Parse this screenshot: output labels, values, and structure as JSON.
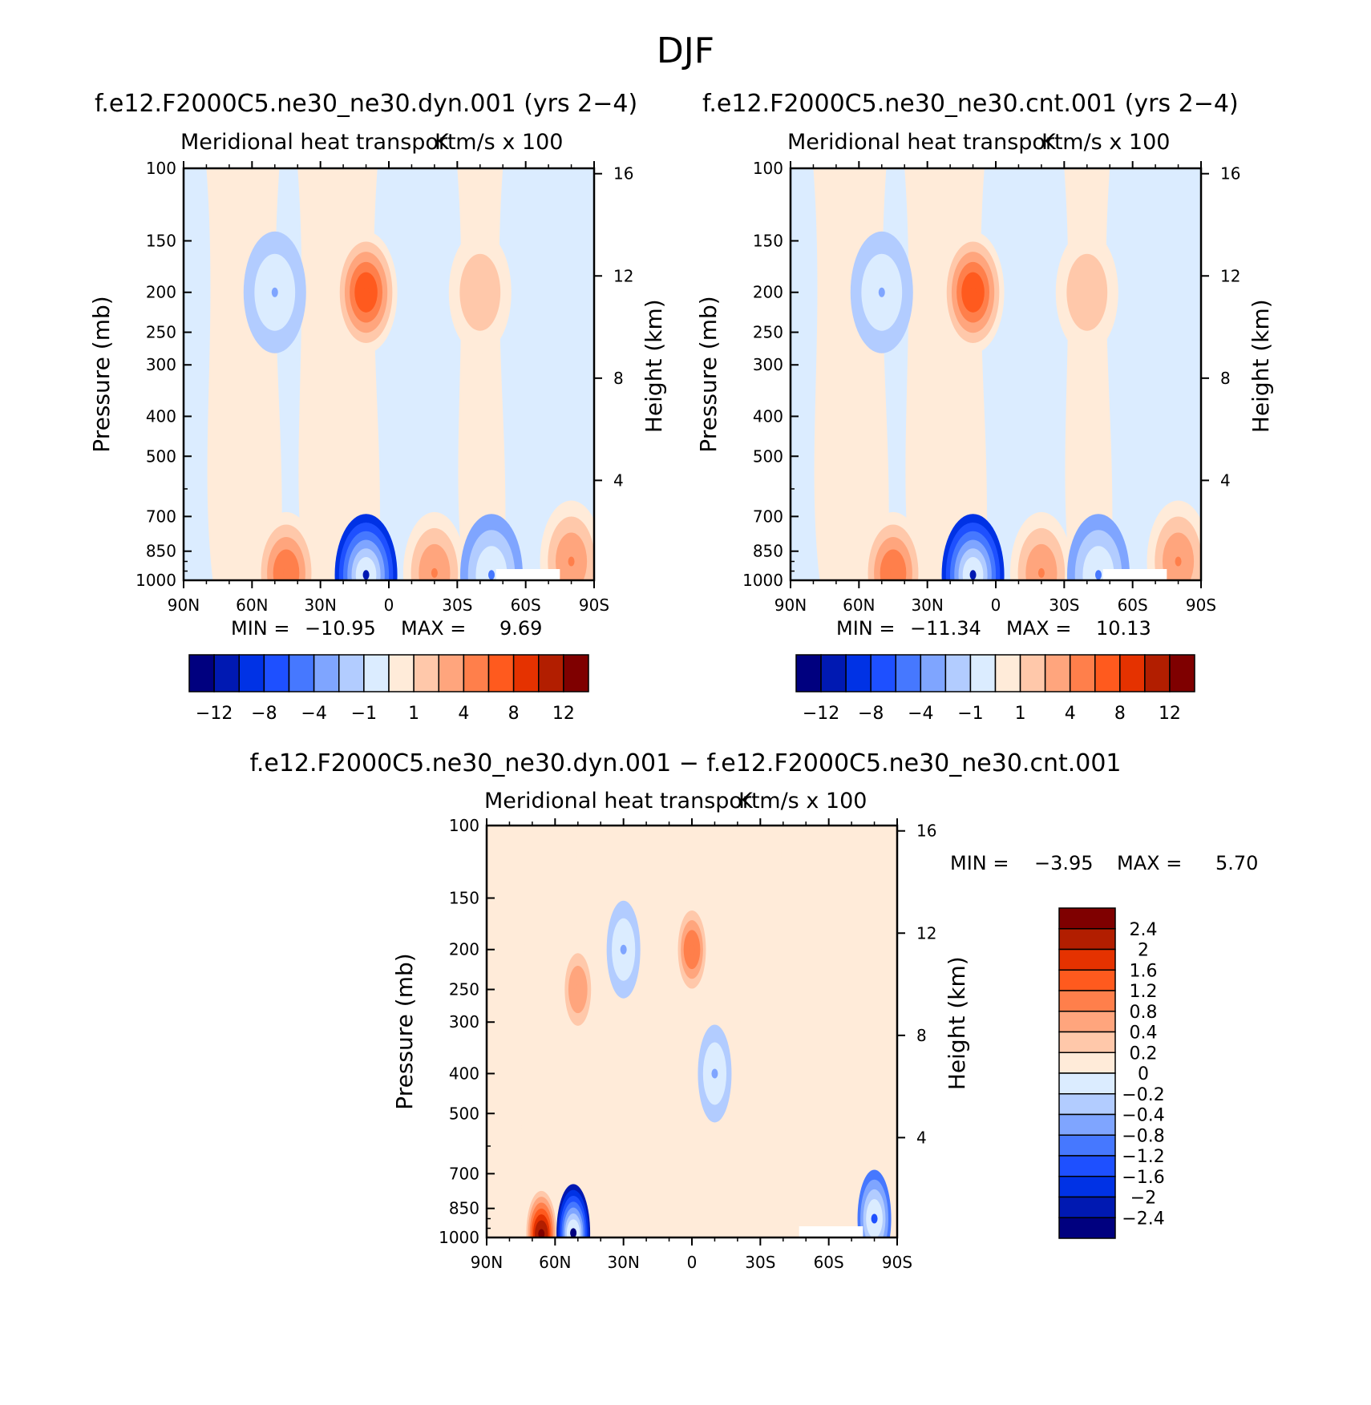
{
  "main_title": "DJF",
  "panels": {
    "top_left": {
      "run_title": "f.e12.F2000C5.ne30_ne30.dyn.001 (yrs 2−4)",
      "left_label": "Meridional heat transport",
      "right_label": "K m/s x 100",
      "stats": {
        "min_label": "MIN =",
        "min": "−10.95",
        "max_label": "MAX =",
        "max": "9.69"
      }
    },
    "top_right": {
      "run_title": "f.e12.F2000C5.ne30_ne30.cnt.001 (yrs 2−4)",
      "left_label": "Meridional heat transport",
      "right_label": "K m/s x 100",
      "stats": {
        "min_label": "MIN =",
        "min": "−11.34",
        "max_label": "MAX =",
        "max": "10.13"
      }
    },
    "bottom": {
      "run_title": "f.e12.F2000C5.ne30_ne30.dyn.001 − f.e12.F2000C5.ne30_ne30.cnt.001",
      "left_label": "Meridional heat transport",
      "right_label": "K m/s x 100",
      "stats": {
        "min_label": "MIN =",
        "min": "−3.95",
        "max_label": "MAX =",
        "max": "5.70"
      }
    }
  },
  "axes": {
    "y_title": "Pressure (mb)",
    "y2_title": "Height (km)",
    "y_ticks": [
      "100",
      "150",
      "200",
      "250",
      "300",
      "400",
      "500",
      "700",
      "850",
      "1000"
    ],
    "y2_ticks": [
      "16",
      "12",
      "8",
      "4"
    ],
    "x_ticks": [
      "90N",
      "60N",
      "30N",
      "0",
      "30S",
      "60S",
      "90S"
    ]
  },
  "colorbars": {
    "top": {
      "labels": [
        "−12",
        "−8",
        "−4",
        "−1",
        "1",
        "4",
        "8",
        "12"
      ],
      "colors": [
        "#00007f",
        "#0019b2",
        "#0032e5",
        "#1e50ff",
        "#4678ff",
        "#7fa5ff",
        "#b2ccff",
        "#dbecff",
        "#ffebd9",
        "#ffc8aa",
        "#ffa57d",
        "#ff7f4b",
        "#ff5a1e",
        "#e53200",
        "#b21e00",
        "#7f0000"
      ]
    },
    "bottom": {
      "labels": [
        "2.4",
        "2",
        "1.6",
        "1.2",
        "0.8",
        "0.4",
        "0.2",
        "0",
        "−0.2",
        "−0.4",
        "−0.8",
        "−1.2",
        "−1.6",
        "−2",
        "−2.4"
      ],
      "colors": [
        "#7f0000",
        "#b21e00",
        "#e53200",
        "#ff5a1e",
        "#ff7f4b",
        "#ffa57d",
        "#ffc8aa",
        "#ffebd9",
        "#dbecff",
        "#b2ccff",
        "#7fa5ff",
        "#4678ff",
        "#1e50ff",
        "#0032e5",
        "#0019b2",
        "#00007f"
      ]
    }
  },
  "chart_data": [
    {
      "type": "heatmap",
      "title": "f.e12.F2000C5.ne30_ne30.dyn.001 (yrs 2−4)",
      "subtitle": "Meridional heat transport  K m/s x 100",
      "xlabel": "",
      "ylabel": "Pressure (mb)",
      "y2label": "Height (km)",
      "x_ticks": [
        "90N",
        "60N",
        "30N",
        "0",
        "30S",
        "60S",
        "90S"
      ],
      "y_ticks": [
        100,
        150,
        200,
        250,
        300,
        400,
        500,
        700,
        850,
        1000
      ],
      "y2_ticks": [
        16,
        12,
        8,
        4
      ],
      "ylim": [
        1000,
        100
      ],
      "min": -10.95,
      "max": 9.69,
      "levels": [
        -12,
        -10,
        -8,
        -6,
        -4,
        -2,
        -1,
        0,
        1,
        2,
        4,
        6,
        8,
        10,
        12
      ],
      "features": [
        {
          "lat": 10,
          "p": 200,
          "value": 8
        },
        {
          "lat": 50,
          "p": 200,
          "value": -2
        },
        {
          "lat": -40,
          "p": 200,
          "value": 2
        },
        {
          "lat": 10,
          "p": 970,
          "value": -10.95
        },
        {
          "lat": 45,
          "p": 960,
          "value": 6
        },
        {
          "lat": -20,
          "p": 960,
          "value": 5
        },
        {
          "lat": -45,
          "p": 970,
          "value": -4
        },
        {
          "lat": -80,
          "p": 900,
          "value": 5
        }
      ]
    },
    {
      "type": "heatmap",
      "title": "f.e12.F2000C5.ne30_ne30.cnt.001 (yrs 2−4)",
      "subtitle": "Meridional heat transport  K m/s x 100",
      "xlabel": "",
      "ylabel": "Pressure (mb)",
      "y2label": "Height (km)",
      "x_ticks": [
        "90N",
        "60N",
        "30N",
        "0",
        "30S",
        "60S",
        "90S"
      ],
      "y_ticks": [
        100,
        150,
        200,
        250,
        300,
        400,
        500,
        700,
        850,
        1000
      ],
      "y2_ticks": [
        16,
        12,
        8,
        4
      ],
      "ylim": [
        1000,
        100
      ],
      "min": -11.34,
      "max": 10.13,
      "levels": [
        -12,
        -10,
        -8,
        -6,
        -4,
        -2,
        -1,
        0,
        1,
        2,
        4,
        6,
        8,
        10,
        12
      ],
      "features": [
        {
          "lat": 10,
          "p": 200,
          "value": 8
        },
        {
          "lat": 50,
          "p": 200,
          "value": -2
        },
        {
          "lat": -40,
          "p": 200,
          "value": 2
        },
        {
          "lat": 10,
          "p": 970,
          "value": -11.34
        },
        {
          "lat": 45,
          "p": 960,
          "value": 6
        },
        {
          "lat": -20,
          "p": 960,
          "value": 5
        },
        {
          "lat": -45,
          "p": 970,
          "value": -4
        },
        {
          "lat": -80,
          "p": 900,
          "value": 5
        }
      ]
    },
    {
      "type": "heatmap",
      "title": "f.e12.F2000C5.ne30_ne30.dyn.001 − f.e12.F2000C5.ne30_ne30.cnt.001",
      "subtitle": "Meridional heat transport  K m/s x 100",
      "xlabel": "",
      "ylabel": "Pressure (mb)",
      "y2label": "Height (km)",
      "x_ticks": [
        "90N",
        "60N",
        "30N",
        "0",
        "30S",
        "60S",
        "90S"
      ],
      "y_ticks": [
        100,
        150,
        200,
        250,
        300,
        400,
        500,
        700,
        850,
        1000
      ],
      "y2_ticks": [
        16,
        12,
        8,
        4
      ],
      "ylim": [
        1000,
        100
      ],
      "min": -3.95,
      "max": 5.7,
      "levels": [
        -2.4,
        -2,
        -1.6,
        -1.2,
        -0.8,
        -0.4,
        -0.2,
        0,
        0.2,
        0.4,
        0.8,
        1.2,
        1.6,
        2,
        2.4
      ],
      "features": [
        {
          "lat": 66,
          "p": 980,
          "value": 5.7
        },
        {
          "lat": 52,
          "p": 975,
          "value": -3.95
        },
        {
          "lat": 50,
          "p": 250,
          "value": 0.8
        },
        {
          "lat": 30,
          "p": 200,
          "value": -0.6
        },
        {
          "lat": 0,
          "p": 200,
          "value": 1.2
        },
        {
          "lat": -10,
          "p": 400,
          "value": -0.5
        },
        {
          "lat": -80,
          "p": 900,
          "value": -1.2
        }
      ]
    }
  ]
}
